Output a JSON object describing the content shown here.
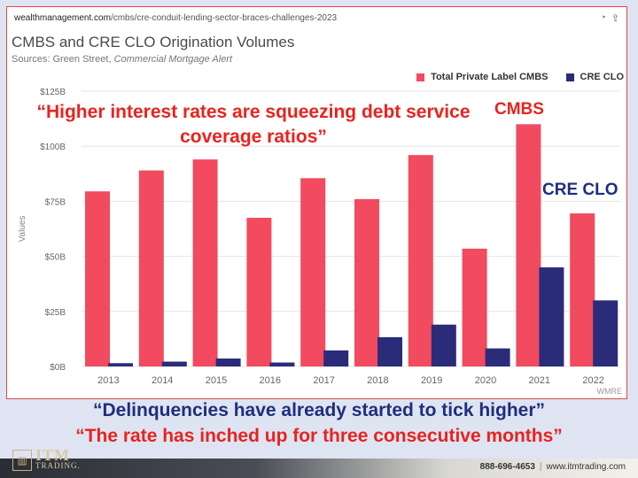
{
  "browser": {
    "url_domain": "wealthmanagement.com",
    "url_path": "/cmbs/cre-conduit-lending-sector-braces-challenges-2023"
  },
  "chart_data": {
    "type": "bar",
    "title": "CMBS and CRE CLO Origination Volumes",
    "subtitle_prefix": "Sources: Green Street, ",
    "subtitle_italic": "Commercial Mortgage Alert",
    "ylabel": "Values",
    "xlabel": "",
    "ylim": [
      0,
      125
    ],
    "yticks": [
      "$0B",
      "$25B",
      "$50B",
      "$75B",
      "$100B",
      "$125B"
    ],
    "ytick_values": [
      0,
      25,
      50,
      75,
      100,
      125
    ],
    "categories": [
      "2013",
      "2014",
      "2015",
      "2016",
      "2017",
      "2018",
      "2019",
      "2020",
      "2021",
      "2022"
    ],
    "series": [
      {
        "name": "Total Private Label CMBS",
        "color": "#f24a5e",
        "values": [
          79.5,
          89,
          94,
          67.5,
          85.5,
          76,
          96,
          53.5,
          110,
          69.5
        ]
      },
      {
        "name": "CRE CLO",
        "color": "#2a2c7a",
        "values": [
          1.5,
          2.2,
          3.6,
          1.8,
          7.3,
          13.3,
          19,
          8.2,
          45,
          30
        ]
      }
    ],
    "legend_position": "top-right",
    "grid": true,
    "watermark": "WMRE"
  },
  "annotations": {
    "quote_top": "“Higher interest rates are squeezing debt service coverage ratios”",
    "callout_cmbs": "CMBS",
    "callout_clo": "CRE CLO",
    "quote_mid": "“Delinquencies have already started to tick higher”",
    "quote_bottom": "“The rate has inched up for three consecutive months”"
  },
  "footer": {
    "logo_text": "ITM",
    "logo_sub": "TRADING.",
    "phone": "888-696-4653",
    "website": "www.itmtrading.com"
  }
}
